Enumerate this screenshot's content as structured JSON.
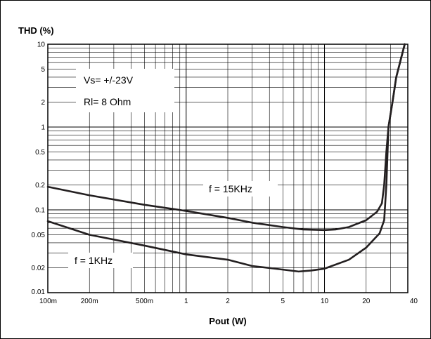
{
  "chart_data": {
    "type": "line",
    "ylabel": "THD (%)",
    "xlabel": "Pout (W)",
    "x_scale": "log",
    "y_scale": "log",
    "xlim": [
      0.1,
      40
    ],
    "ylim": [
      0.01,
      10
    ],
    "grid": true,
    "x_ticks": [
      {
        "value": 0.1,
        "label": "100m"
      },
      {
        "value": 0.2,
        "label": "200m"
      },
      {
        "value": 0.5,
        "label": "500m"
      },
      {
        "value": 1,
        "label": "1"
      },
      {
        "value": 2,
        "label": "2"
      },
      {
        "value": 5,
        "label": "5"
      },
      {
        "value": 10,
        "label": "10"
      },
      {
        "value": 20,
        "label": "20"
      },
      {
        "value": 40,
        "label": "40"
      }
    ],
    "y_ticks": [
      {
        "value": 0.01,
        "label": "0.01"
      },
      {
        "value": 0.02,
        "label": "0.02"
      },
      {
        "value": 0.05,
        "label": "0.05"
      },
      {
        "value": 0.1,
        "label": "0.1"
      },
      {
        "value": 0.2,
        "label": "0.2"
      },
      {
        "value": 0.5,
        "label": "0.5"
      },
      {
        "value": 1,
        "label": "1"
      },
      {
        "value": 2,
        "label": "2"
      },
      {
        "value": 5,
        "label": "5"
      },
      {
        "value": 10,
        "label": "10"
      }
    ],
    "conditions": [
      "Vs= +/-23V",
      "Rl= 8 Ohm"
    ],
    "series": [
      {
        "name": "f = 15KHz",
        "points": [
          [
            0.1,
            0.19
          ],
          [
            0.2,
            0.15
          ],
          [
            0.5,
            0.115
          ],
          [
            1,
            0.097
          ],
          [
            2,
            0.08
          ],
          [
            3,
            0.07
          ],
          [
            5,
            0.062
          ],
          [
            7,
            0.058
          ],
          [
            10,
            0.057
          ],
          [
            12,
            0.058
          ],
          [
            15,
            0.062
          ],
          [
            20,
            0.075
          ],
          [
            24,
            0.095
          ],
          [
            26,
            0.12
          ],
          [
            27,
            0.2
          ],
          [
            28,
            0.5
          ],
          [
            29,
            1
          ],
          [
            31,
            2
          ],
          [
            33,
            4
          ],
          [
            38,
            10
          ]
        ]
      },
      {
        "name": "f = 1KHz",
        "points": [
          [
            0.1,
            0.073
          ],
          [
            0.2,
            0.05
          ],
          [
            0.5,
            0.037
          ],
          [
            1,
            0.029
          ],
          [
            2,
            0.025
          ],
          [
            3,
            0.021
          ],
          [
            5,
            0.019
          ],
          [
            6.5,
            0.018
          ],
          [
            8,
            0.0185
          ],
          [
            10,
            0.0195
          ],
          [
            15,
            0.025
          ],
          [
            20,
            0.035
          ],
          [
            25,
            0.052
          ],
          [
            27,
            0.075
          ],
          [
            28,
            0.2
          ],
          [
            29,
            1
          ],
          [
            31,
            2
          ],
          [
            33,
            4
          ],
          [
            38,
            10
          ]
        ]
      }
    ]
  }
}
